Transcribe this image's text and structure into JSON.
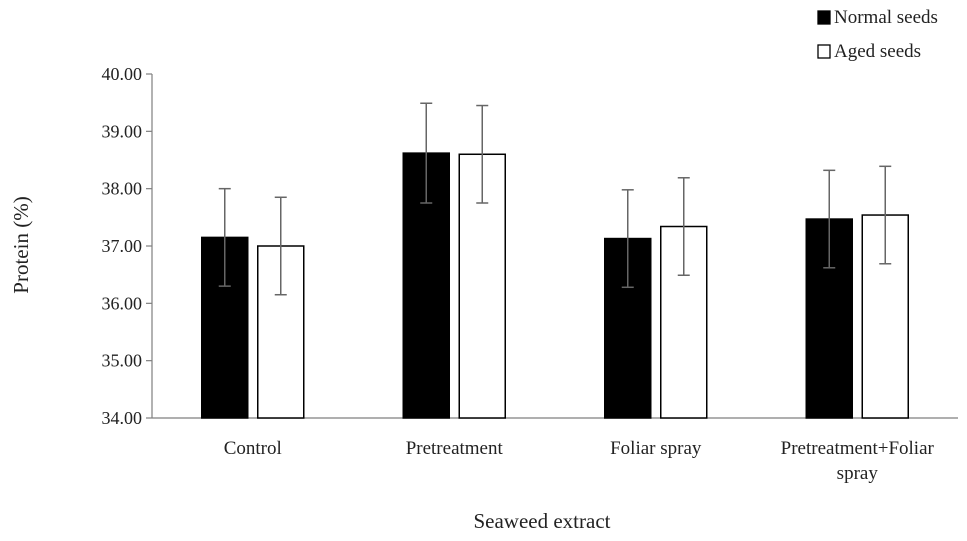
{
  "chart_data": {
    "type": "bar",
    "xlabel": "Seaweed extract",
    "ylabel": "Protein (%)",
    "ylim": [
      34,
      40
    ],
    "yticks": [
      "34.00",
      "35.00",
      "36.00",
      "37.00",
      "38.00",
      "39.00",
      "40.00"
    ],
    "categories": [
      [
        "Control"
      ],
      [
        "Pretreatment"
      ],
      [
        "Foliar spray"
      ],
      [
        "Pretreatment+Foliar",
        "spray"
      ]
    ],
    "series": [
      {
        "name": "Normal seeds",
        "color": "#000000",
        "values": [
          37.15,
          38.62,
          37.13,
          37.47
        ],
        "error": [
          0.85,
          0.87,
          0.85,
          0.85
        ]
      },
      {
        "name": "Aged seeds",
        "color": "#ffffff",
        "values": [
          37.0,
          38.6,
          37.34,
          37.54
        ],
        "error": [
          0.85,
          0.85,
          0.85,
          0.85
        ]
      }
    ],
    "grid": false,
    "legend_position": "top-right"
  }
}
